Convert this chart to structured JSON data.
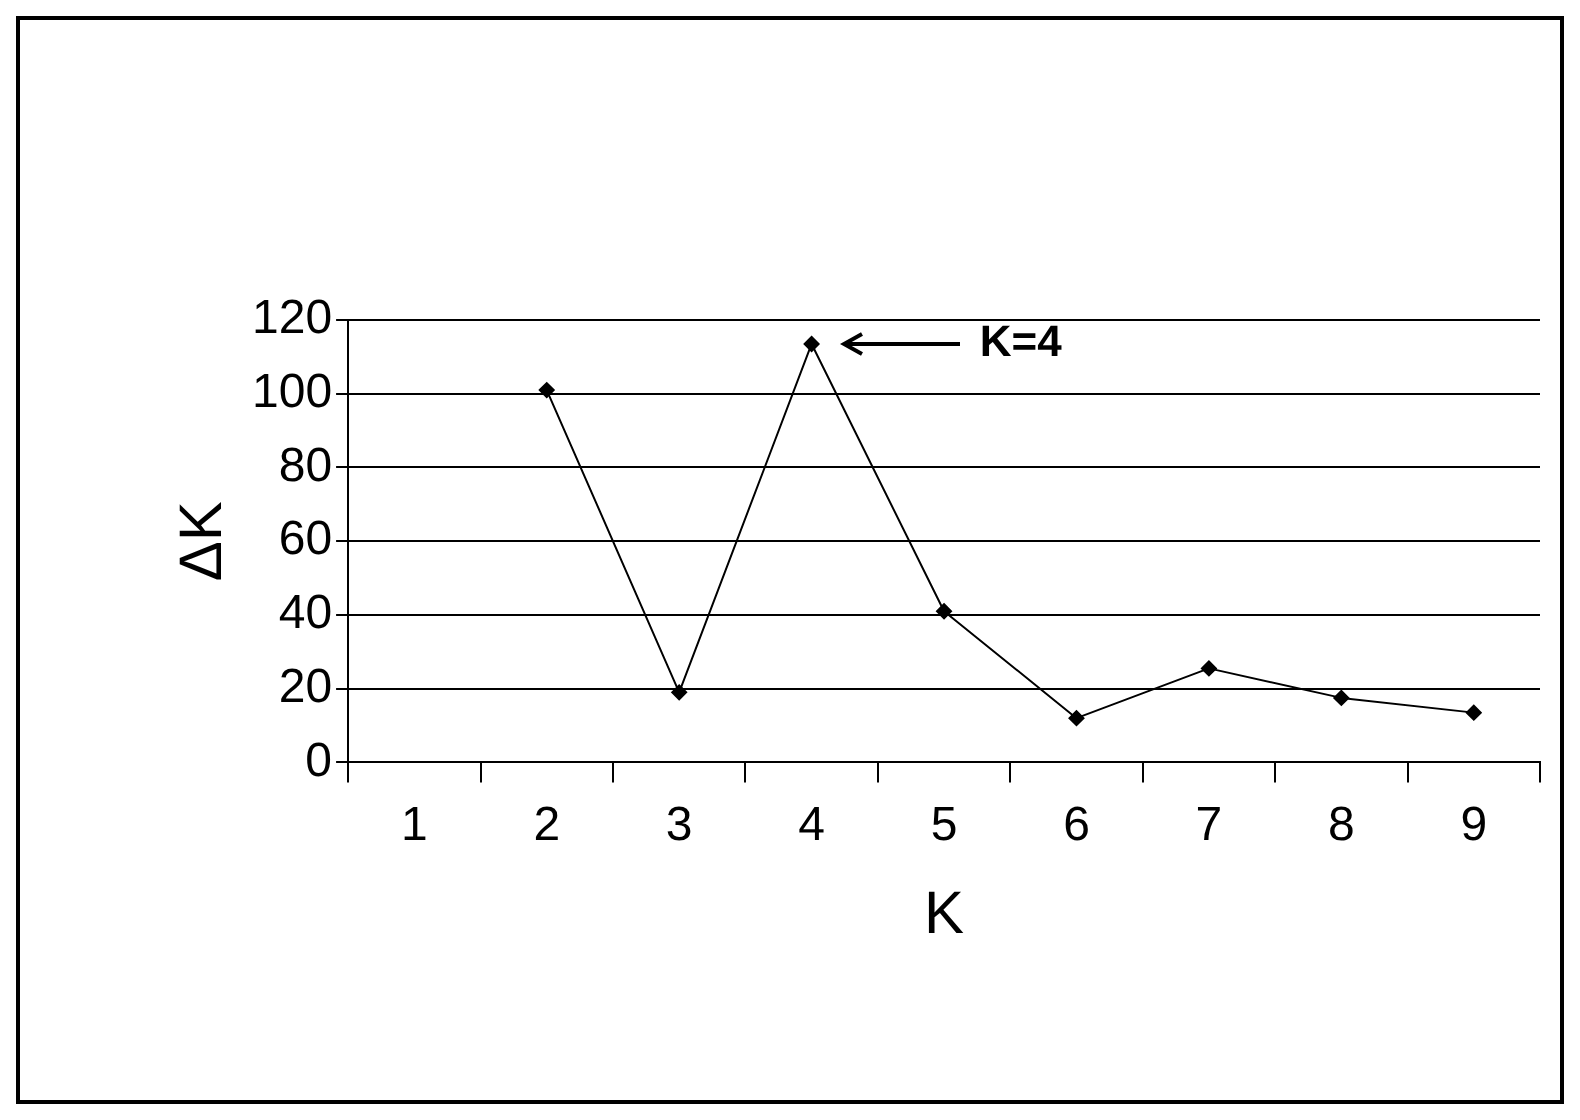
{
  "chart_data": {
    "type": "line",
    "xlabel": "K",
    "ylabel": "ΔK",
    "categories": [
      "1",
      "2",
      "3",
      "4",
      "5",
      "6",
      "7",
      "8",
      "9"
    ],
    "series": [
      {
        "color": "#000000",
        "values": [
          null,
          101,
          19,
          113.5,
          41,
          12,
          25.5,
          17.5,
          13.5
        ]
      }
    ],
    "ylim": [
      0,
      120
    ],
    "yticks": [
      0,
      20,
      40,
      60,
      80,
      100,
      120
    ],
    "grid": "y",
    "legend": false,
    "marker": "diamond",
    "line_style": "solid",
    "annotations": [
      "K=4"
    ]
  }
}
